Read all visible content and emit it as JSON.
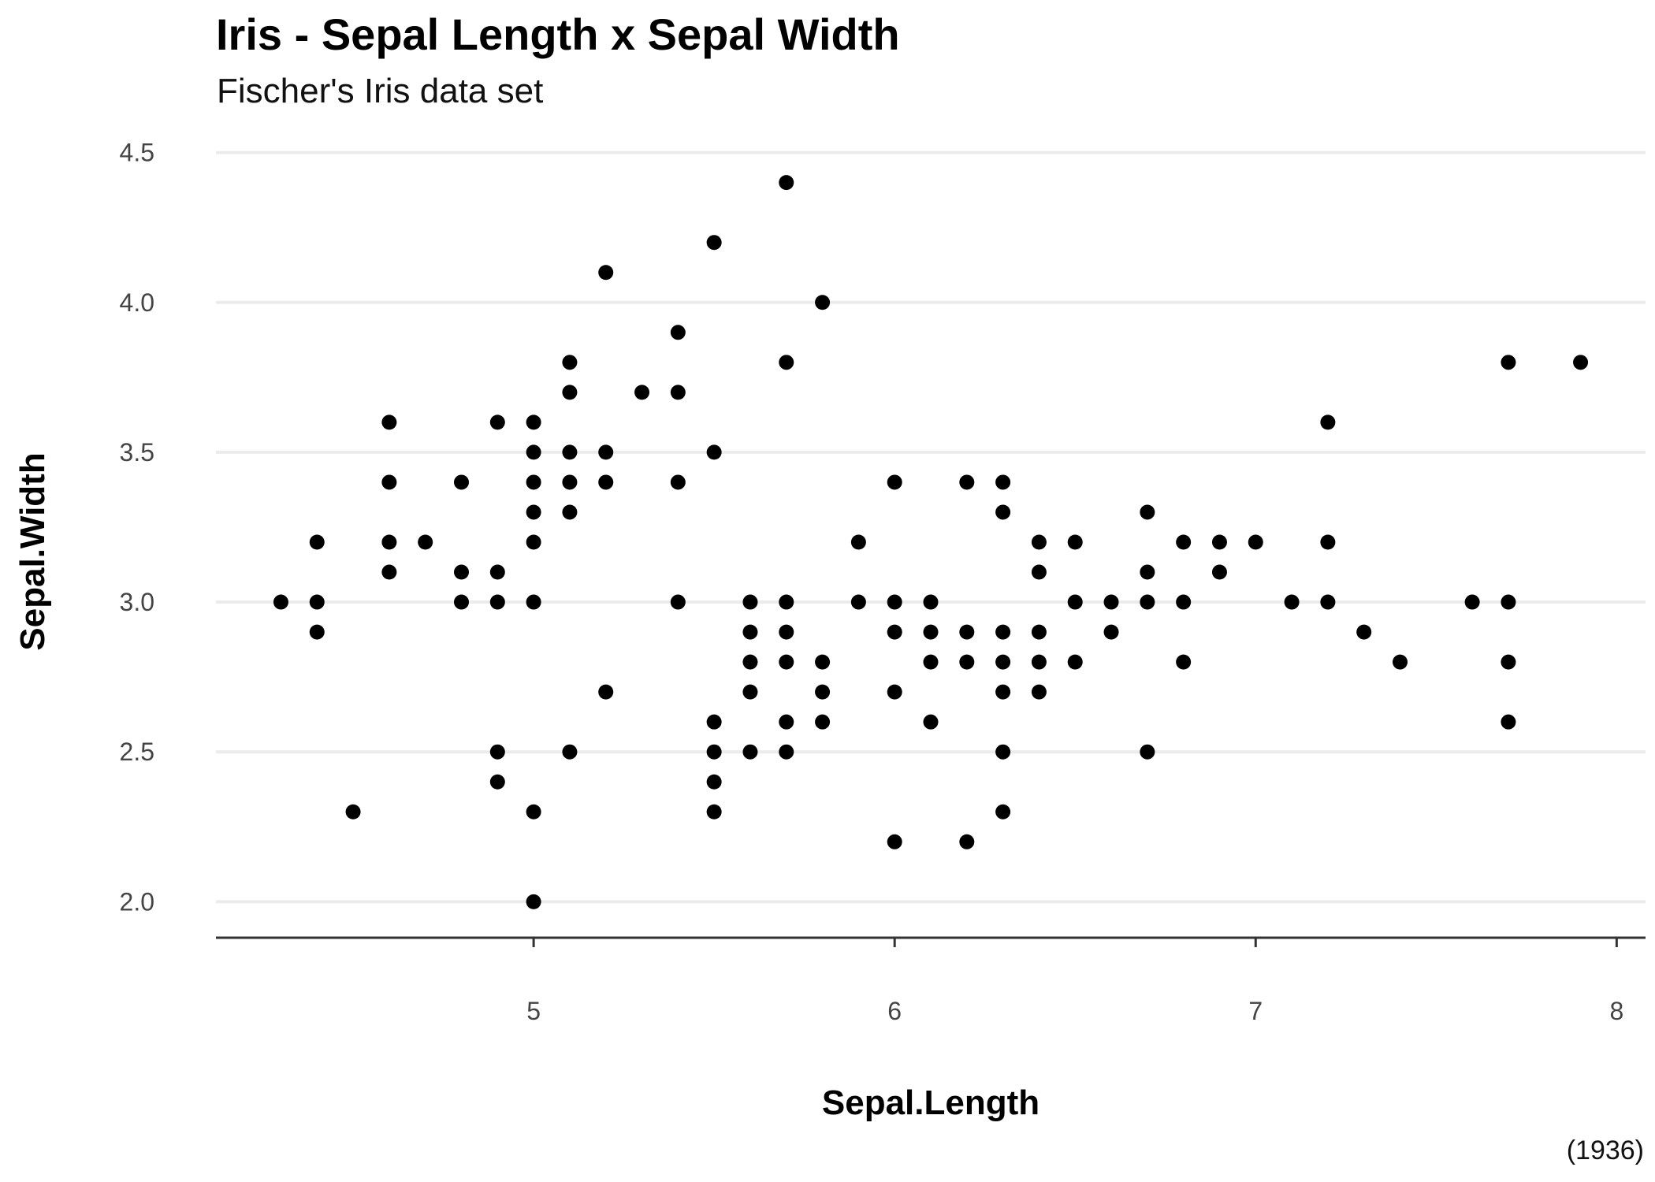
{
  "chart_data": {
    "type": "scatter",
    "title": "Iris - Sepal Length x Sepal Width",
    "subtitle": "Fischer's Iris data set",
    "caption": "(1936)",
    "xlabel": "Sepal.Length",
    "ylabel": "Sepal.Width",
    "xlim": [
      4.12,
      8.08
    ],
    "ylim": [
      1.88,
      4.52
    ],
    "xticks": [
      5,
      6,
      7,
      8
    ],
    "yticks": [
      2.0,
      2.5,
      3.0,
      3.5,
      4.0,
      4.5
    ],
    "ytick_labels": [
      "2.0",
      "2.5",
      "3.0",
      "3.5",
      "4.0",
      "4.5"
    ],
    "grid": "horizontal major",
    "point_color": "#000000",
    "gridline_color": "#ebebeb",
    "points": [
      [
        4.3,
        3.0
      ],
      [
        4.4,
        2.9
      ],
      [
        4.4,
        3.0
      ],
      [
        4.4,
        3.2
      ],
      [
        4.5,
        2.3
      ],
      [
        4.6,
        3.1
      ],
      [
        4.6,
        3.2
      ],
      [
        4.6,
        3.4
      ],
      [
        4.6,
        3.6
      ],
      [
        4.7,
        3.2
      ],
      [
        4.8,
        3.0
      ],
      [
        4.8,
        3.1
      ],
      [
        4.8,
        3.4
      ],
      [
        4.9,
        2.4
      ],
      [
        4.9,
        2.5
      ],
      [
        4.9,
        3.0
      ],
      [
        4.9,
        3.1
      ],
      [
        4.9,
        3.6
      ],
      [
        5.0,
        2.0
      ],
      [
        5.0,
        2.3
      ],
      [
        5.0,
        3.0
      ],
      [
        5.0,
        3.2
      ],
      [
        5.0,
        3.3
      ],
      [
        5.0,
        3.4
      ],
      [
        5.0,
        3.5
      ],
      [
        5.0,
        3.6
      ],
      [
        5.1,
        2.5
      ],
      [
        5.1,
        3.3
      ],
      [
        5.1,
        3.4
      ],
      [
        5.1,
        3.5
      ],
      [
        5.1,
        3.7
      ],
      [
        5.1,
        3.8
      ],
      [
        5.2,
        2.7
      ],
      [
        5.2,
        3.4
      ],
      [
        5.2,
        3.5
      ],
      [
        5.2,
        4.1
      ],
      [
        5.3,
        3.7
      ],
      [
        5.4,
        3.0
      ],
      [
        5.4,
        3.4
      ],
      [
        5.4,
        3.7
      ],
      [
        5.4,
        3.9
      ],
      [
        5.5,
        2.3
      ],
      [
        5.5,
        2.4
      ],
      [
        5.5,
        2.5
      ],
      [
        5.5,
        2.6
      ],
      [
        5.5,
        3.5
      ],
      [
        5.5,
        4.2
      ],
      [
        5.6,
        2.5
      ],
      [
        5.6,
        2.7
      ],
      [
        5.6,
        2.8
      ],
      [
        5.6,
        2.9
      ],
      [
        5.6,
        3.0
      ],
      [
        5.7,
        2.5
      ],
      [
        5.7,
        2.6
      ],
      [
        5.7,
        2.8
      ],
      [
        5.7,
        2.9
      ],
      [
        5.7,
        3.0
      ],
      [
        5.7,
        3.8
      ],
      [
        5.7,
        4.4
      ],
      [
        5.8,
        2.6
      ],
      [
        5.8,
        2.7
      ],
      [
        5.8,
        2.8
      ],
      [
        5.8,
        4.0
      ],
      [
        5.9,
        3.0
      ],
      [
        5.9,
        3.2
      ],
      [
        6.0,
        2.2
      ],
      [
        6.0,
        2.7
      ],
      [
        6.0,
        2.9
      ],
      [
        6.0,
        3.0
      ],
      [
        6.0,
        3.4
      ],
      [
        6.1,
        2.6
      ],
      [
        6.1,
        2.8
      ],
      [
        6.1,
        2.9
      ],
      [
        6.1,
        3.0
      ],
      [
        6.2,
        2.2
      ],
      [
        6.2,
        2.8
      ],
      [
        6.2,
        2.9
      ],
      [
        6.2,
        3.4
      ],
      [
        6.3,
        2.3
      ],
      [
        6.3,
        2.5
      ],
      [
        6.3,
        2.7
      ],
      [
        6.3,
        2.8
      ],
      [
        6.3,
        2.9
      ],
      [
        6.3,
        3.3
      ],
      [
        6.3,
        3.4
      ],
      [
        6.4,
        2.7
      ],
      [
        6.4,
        2.8
      ],
      [
        6.4,
        2.9
      ],
      [
        6.4,
        3.1
      ],
      [
        6.4,
        3.2
      ],
      [
        6.5,
        2.8
      ],
      [
        6.5,
        3.0
      ],
      [
        6.5,
        3.2
      ],
      [
        6.6,
        2.9
      ],
      [
        6.6,
        3.0
      ],
      [
        6.7,
        2.5
      ],
      [
        6.7,
        3.0
      ],
      [
        6.7,
        3.1
      ],
      [
        6.7,
        3.3
      ],
      [
        6.8,
        2.8
      ],
      [
        6.8,
        3.0
      ],
      [
        6.8,
        3.2
      ],
      [
        6.9,
        3.1
      ],
      [
        6.9,
        3.2
      ],
      [
        7.0,
        3.2
      ],
      [
        7.1,
        3.0
      ],
      [
        7.2,
        3.0
      ],
      [
        7.2,
        3.2
      ],
      [
        7.2,
        3.6
      ],
      [
        7.3,
        2.9
      ],
      [
        7.4,
        2.8
      ],
      [
        7.6,
        3.0
      ],
      [
        7.7,
        2.6
      ],
      [
        7.7,
        2.8
      ],
      [
        7.7,
        3.0
      ],
      [
        7.7,
        3.8
      ],
      [
        7.9,
        3.8
      ]
    ]
  }
}
